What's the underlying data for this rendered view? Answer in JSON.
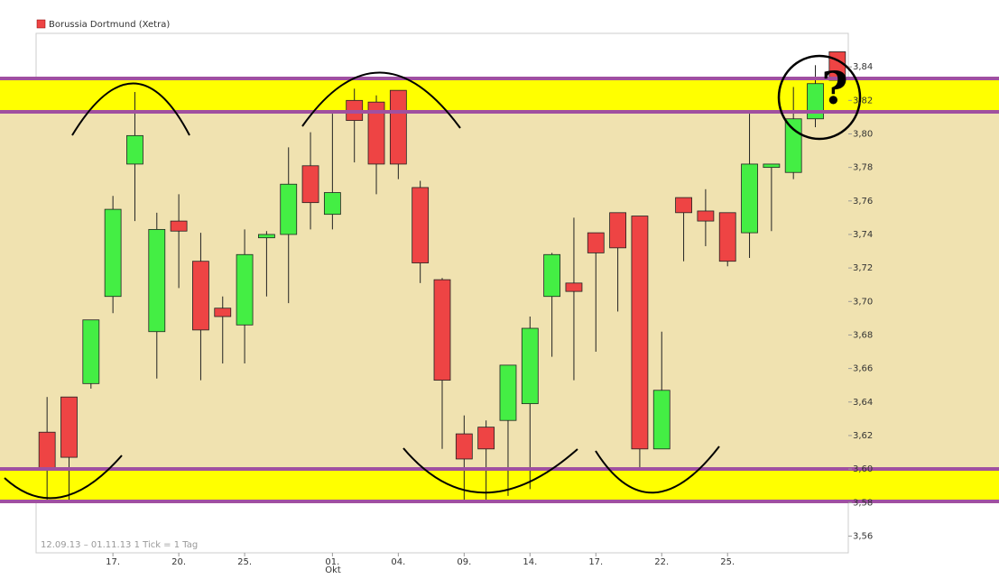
{
  "chart_data": {
    "type": "candlestick",
    "legend": "Borussia Dortmund (Xetra)",
    "footer": "12.09.13 – 01.11.13   1 Tick = 1 Tag",
    "annotation": "?",
    "x_month": "Okt",
    "categories": [
      null,
      null,
      null,
      "17.",
      null,
      null,
      "20.",
      null,
      null,
      "25.",
      null,
      null,
      null,
      "01.",
      null,
      null,
      "04.",
      null,
      null,
      "09.",
      null,
      null,
      "14.",
      null,
      null,
      "17.",
      null,
      null,
      "22.",
      null,
      null,
      "25.",
      null,
      null,
      null,
      null,
      null
    ],
    "series": [
      {
        "name": "Borussia Dortmund (Xetra)",
        "up_color": "#44ee44",
        "down_color": "#ee4444",
        "open": [
          3.622,
          3.643,
          3.651,
          3.703,
          3.782,
          3.682,
          3.748,
          3.724,
          3.696,
          3.686,
          3.738,
          3.74,
          3.781,
          3.752,
          3.82,
          3.819,
          3.826,
          3.768,
          3.713,
          3.621,
          3.625,
          3.629,
          3.639,
          3.703,
          3.711,
          3.741,
          3.753,
          3.751,
          3.612,
          3.762,
          3.754,
          3.753,
          3.741,
          3.78,
          3.777,
          3.809,
          3.849
        ],
        "high": [
          3.643,
          3.643,
          3.689,
          3.763,
          3.825,
          3.753,
          3.764,
          3.741,
          3.703,
          3.743,
          3.742,
          3.792,
          3.801,
          3.812,
          3.827,
          3.823,
          3.826,
          3.772,
          3.714,
          3.632,
          3.629,
          3.662,
          3.691,
          3.729,
          3.75,
          3.741,
          3.753,
          3.751,
          3.682,
          3.762,
          3.767,
          3.753,
          3.812,
          3.782,
          3.828,
          3.841,
          3.849
        ],
        "low": [
          3.58,
          3.581,
          3.648,
          3.693,
          3.748,
          3.654,
          3.708,
          3.653,
          3.663,
          3.663,
          3.703,
          3.699,
          3.743,
          3.743,
          3.783,
          3.764,
          3.773,
          3.711,
          3.612,
          3.581,
          3.581,
          3.584,
          3.588,
          3.667,
          3.653,
          3.67,
          3.694,
          3.6,
          3.612,
          3.724,
          3.733,
          3.721,
          3.726,
          3.742,
          3.773,
          3.804,
          3.832
        ],
        "close": [
          3.6,
          3.607,
          3.689,
          3.755,
          3.799,
          3.743,
          3.742,
          3.683,
          3.691,
          3.728,
          3.74,
          3.77,
          3.759,
          3.765,
          3.808,
          3.782,
          3.782,
          3.723,
          3.653,
          3.606,
          3.612,
          3.662,
          3.684,
          3.728,
          3.706,
          3.729,
          3.732,
          3.612,
          3.647,
          3.753,
          3.748,
          3.724,
          3.782,
          3.782,
          3.809,
          3.83,
          3.832
        ]
      }
    ],
    "ylim": [
      3.55,
      3.86
    ],
    "yticks": [
      {
        "value": 3.56,
        "label": "3,56"
      },
      {
        "value": 3.58,
        "label": "3,58"
      },
      {
        "value": 3.6,
        "label": "3,60"
      },
      {
        "value": 3.62,
        "label": "3,62"
      },
      {
        "value": 3.64,
        "label": "3,64"
      },
      {
        "value": 3.66,
        "label": "3,66"
      },
      {
        "value": 3.68,
        "label": "3,68"
      },
      {
        "value": 3.7,
        "label": "3,70"
      },
      {
        "value": 3.72,
        "label": "3,72"
      },
      {
        "value": 3.74,
        "label": "3,74"
      },
      {
        "value": 3.76,
        "label": "3,76"
      },
      {
        "value": 3.78,
        "label": "3,78"
      },
      {
        "value": 3.8,
        "label": "3,80"
      },
      {
        "value": 3.82,
        "label": "3,82"
      },
      {
        "value": 3.84,
        "label": "3,84"
      }
    ],
    "grid": false
  }
}
